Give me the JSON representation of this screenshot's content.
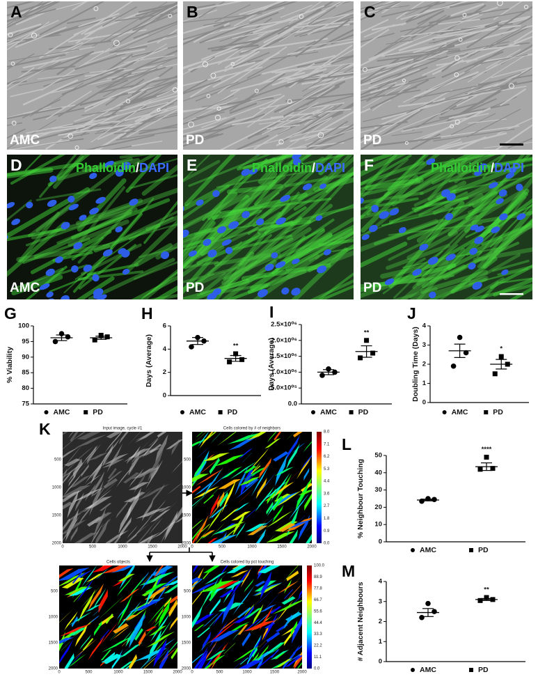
{
  "micrographs": {
    "brightfield": [
      {
        "panel": "A",
        "label": "AMC"
      },
      {
        "panel": "B",
        "label": "PD"
      },
      {
        "panel": "C",
        "label": "PD"
      }
    ],
    "fluorescence": {
      "stain_green": "Phalloidin",
      "separator": "/",
      "stain_blue": "DAPI",
      "panels": [
        {
          "panel": "D",
          "label": "AMC"
        },
        {
          "panel": "E",
          "label": "PD"
        },
        {
          "panel": "F",
          "label": "PD"
        }
      ]
    }
  },
  "segmentation": {
    "panel": "K",
    "images": [
      {
        "title": "Input image, cycle #1",
        "xticks": [
          0,
          500,
          1000,
          1500,
          2000
        ],
        "yticks": [
          500,
          1000,
          1500,
          2000
        ]
      },
      {
        "title": "Cells colored by # of neighbors",
        "xticks": [
          0,
          500,
          1000,
          1500,
          2000
        ],
        "yticks": [
          500,
          1000,
          1500,
          2000
        ],
        "colorbar": [
          "0.0",
          "0.9",
          "1.8",
          "2.7",
          "3.6",
          "4.4",
          "5.3",
          "6.2",
          "7.1",
          "8.0"
        ]
      },
      {
        "title": "Cells objects",
        "xticks": [
          0,
          500,
          1000,
          1500,
          2000
        ],
        "yticks": [
          500,
          1000,
          1500,
          2000
        ]
      },
      {
        "title": "Cells colored by pct touching",
        "xticks": [
          0,
          500,
          1000,
          1500,
          2000
        ],
        "yticks": [
          500,
          1000,
          1500,
          2000
        ],
        "colorbar": [
          "0.0",
          "11.1",
          "22.2",
          "33.3",
          "44.4",
          "55.6",
          "66.7",
          "77.8",
          "88.9",
          "100.0"
        ]
      }
    ]
  },
  "chart_data": [
    {
      "type": "dot",
      "panel": "G",
      "ylabel": "% Viability",
      "ylim": [
        75,
        100
      ],
      "yticks": [
        75,
        80,
        85,
        90,
        95,
        100
      ],
      "series": [
        {
          "name": "AMC",
          "marker": "circle",
          "values": [
            97.5,
            96.5,
            95
          ],
          "mean": 96.2,
          "error": 0.9
        },
        {
          "name": "PD",
          "marker": "square",
          "values": [
            97,
            96.5,
            95.5
          ],
          "mean": 96.2,
          "error": 0.5
        }
      ]
    },
    {
      "type": "dot",
      "panel": "H",
      "ylabel": "Days (Average)",
      "ylim": [
        0,
        6
      ],
      "yticks": [
        0,
        2,
        4,
        6
      ],
      "series": [
        {
          "name": "AMC",
          "marker": "circle",
          "values": [
            5.0,
            4.7,
            4.2
          ],
          "mean": 4.7,
          "error": 0.3
        },
        {
          "name": "PD",
          "marker": "square",
          "values": [
            3.6,
            3.1,
            2.9
          ],
          "mean": 3.2,
          "error": 0.25,
          "annotation": "**"
        }
      ]
    },
    {
      "type": "dot",
      "panel": "I",
      "ylabel": "Days (Average)",
      "ylim": [
        0,
        2500000
      ],
      "yticks": [
        {
          "value": 0,
          "label": "0.0"
        },
        {
          "value": 500000,
          "label": "5.0×10⁰⁵"
        },
        {
          "value": 1000000,
          "label": "1.0×10⁰⁶"
        },
        {
          "value": 1500000,
          "label": "1.5×10⁰⁶"
        },
        {
          "value": 2000000,
          "label": "2.0×10⁰⁶"
        },
        {
          "value": 2500000,
          "label": "2.5×10⁰⁶"
        }
      ],
      "series": [
        {
          "name": "AMC",
          "marker": "circle",
          "values": [
            1100000,
            1000000,
            900000
          ],
          "mean": 1000000,
          "error": 80000
        },
        {
          "name": "PD",
          "marker": "square",
          "values": [
            2000000,
            1600000,
            1450000
          ],
          "mean": 1650000,
          "error": 180000,
          "annotation": "**"
        }
      ]
    },
    {
      "type": "dot",
      "panel": "J",
      "ylabel": "Doubling  Time (Days)",
      "ylim": [
        0,
        4
      ],
      "yticks": [
        0,
        1,
        2,
        3,
        4
      ],
      "series": [
        {
          "name": "AMC",
          "marker": "circle",
          "values": [
            3.4,
            2.6,
            1.9
          ],
          "mean": 2.7,
          "error": 0.35
        },
        {
          "name": "PD",
          "marker": "square",
          "values": [
            2.4,
            2.0,
            1.5
          ],
          "mean": 2.0,
          "error": 0.25,
          "annotation": "*"
        }
      ]
    },
    {
      "type": "dot",
      "panel": "L",
      "ylabel": "% Neighbour Touching",
      "ylim": [
        0,
        50
      ],
      "yticks": [
        0,
        10,
        20,
        30,
        40,
        50
      ],
      "series": [
        {
          "name": "AMC",
          "marker": "circle",
          "values": [
            25,
            24.5,
            23.5
          ],
          "mean": 24.2,
          "error": 0.5
        },
        {
          "name": "PD",
          "marker": "square",
          "values": [
            49,
            42.5,
            42
          ],
          "mean": 43.5,
          "error": 2.2,
          "annotation": "****"
        }
      ]
    },
    {
      "type": "dot",
      "panel": "M",
      "ylabel": "# Adjacent Neighbours",
      "ylim": [
        0,
        4
      ],
      "yticks": [
        0,
        1,
        2,
        3,
        4
      ],
      "series": [
        {
          "name": "AMC",
          "marker": "circle",
          "values": [
            2.9,
            2.5,
            2.2
          ],
          "mean": 2.45,
          "error": 0.2
        },
        {
          "name": "PD",
          "marker": "square",
          "values": [
            3.2,
            3.1,
            3.05
          ],
          "mean": 3.1,
          "error": 0.05,
          "annotation": "**"
        }
      ]
    }
  ]
}
